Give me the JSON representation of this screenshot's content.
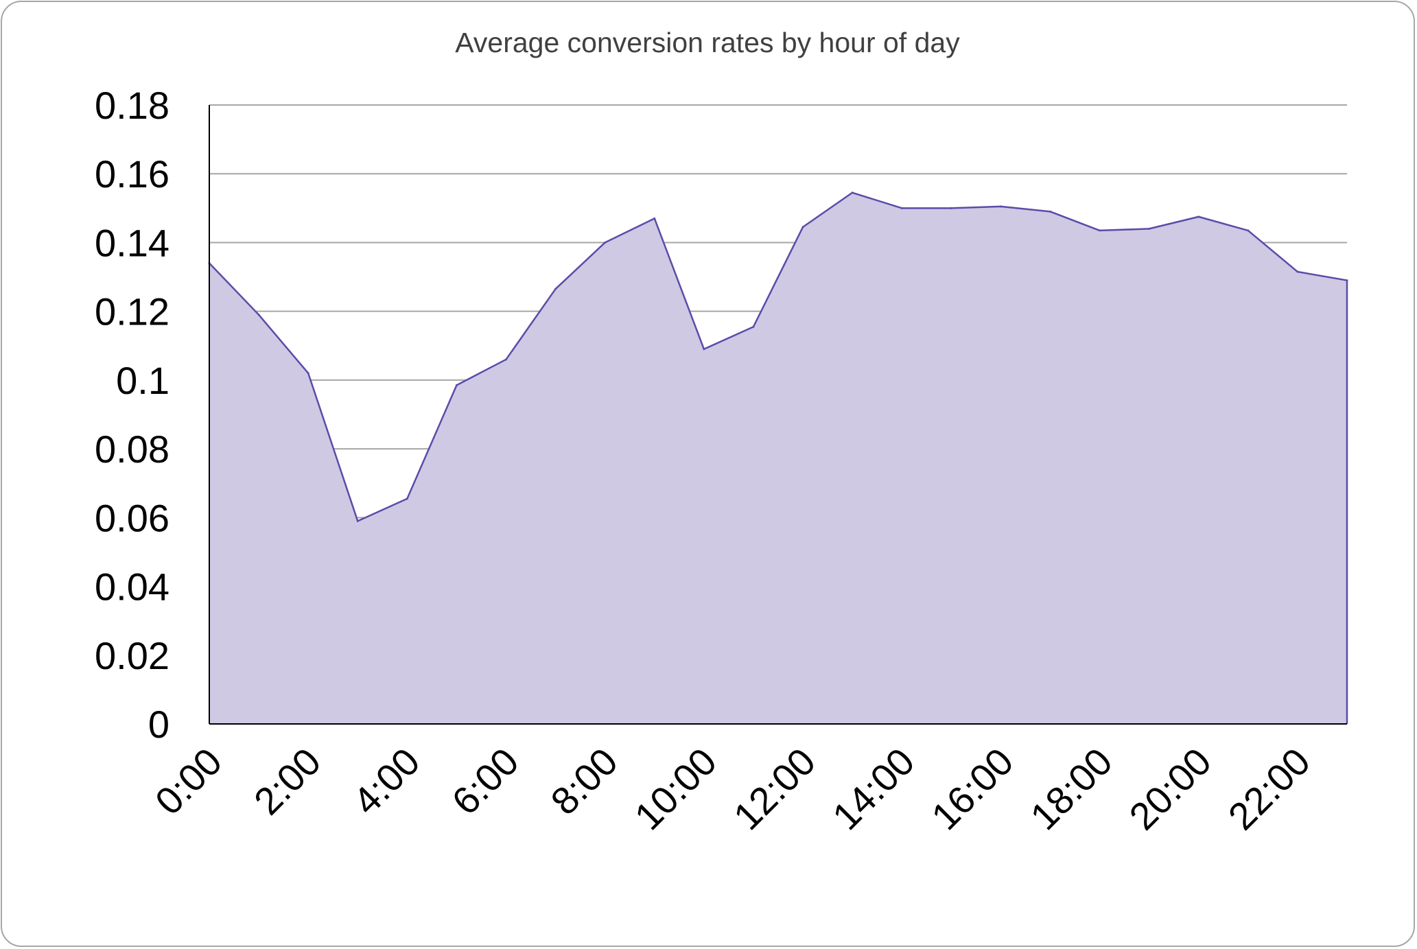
{
  "chart_data": {
    "type": "area",
    "title": "Average conversion rates by hour of day",
    "xlabel": "",
    "ylabel": "",
    "x": [
      "0:00",
      "1:00",
      "2:00",
      "3:00",
      "4:00",
      "5:00",
      "6:00",
      "7:00",
      "8:00",
      "9:00",
      "10:00",
      "11:00",
      "12:00",
      "13:00",
      "14:00",
      "15:00",
      "16:00",
      "17:00",
      "18:00",
      "19:00",
      "20:00",
      "21:00",
      "22:00",
      "23:00"
    ],
    "x_tick_labels": [
      "0:00",
      "2:00",
      "4:00",
      "6:00",
      "8:00",
      "10:00",
      "12:00",
      "14:00",
      "16:00",
      "18:00",
      "20:00",
      "22:00"
    ],
    "series": [
      {
        "values": [
          0.134,
          0.119,
          0.102,
          0.059,
          0.0655,
          0.0985,
          0.106,
          0.1265,
          0.14,
          0.147,
          0.109,
          0.1155,
          0.1445,
          0.1545,
          0.15,
          0.15,
          0.1505,
          0.149,
          0.1435,
          0.144,
          0.1475,
          0.1435,
          0.1315,
          0.129
        ]
      }
    ],
    "ylim": [
      0,
      0.18
    ],
    "y_tick_labels": [
      "0",
      "0.02",
      "0.04",
      "0.06",
      "0.08",
      "0.1",
      "0.12",
      "0.14",
      "0.16",
      "0.18"
    ],
    "grid": true,
    "legend": "none",
    "colors": {
      "fill": "#cfc9e4",
      "line": "#5b4ba8",
      "grid": "#a6a6a6",
      "axis": "#000000"
    }
  }
}
